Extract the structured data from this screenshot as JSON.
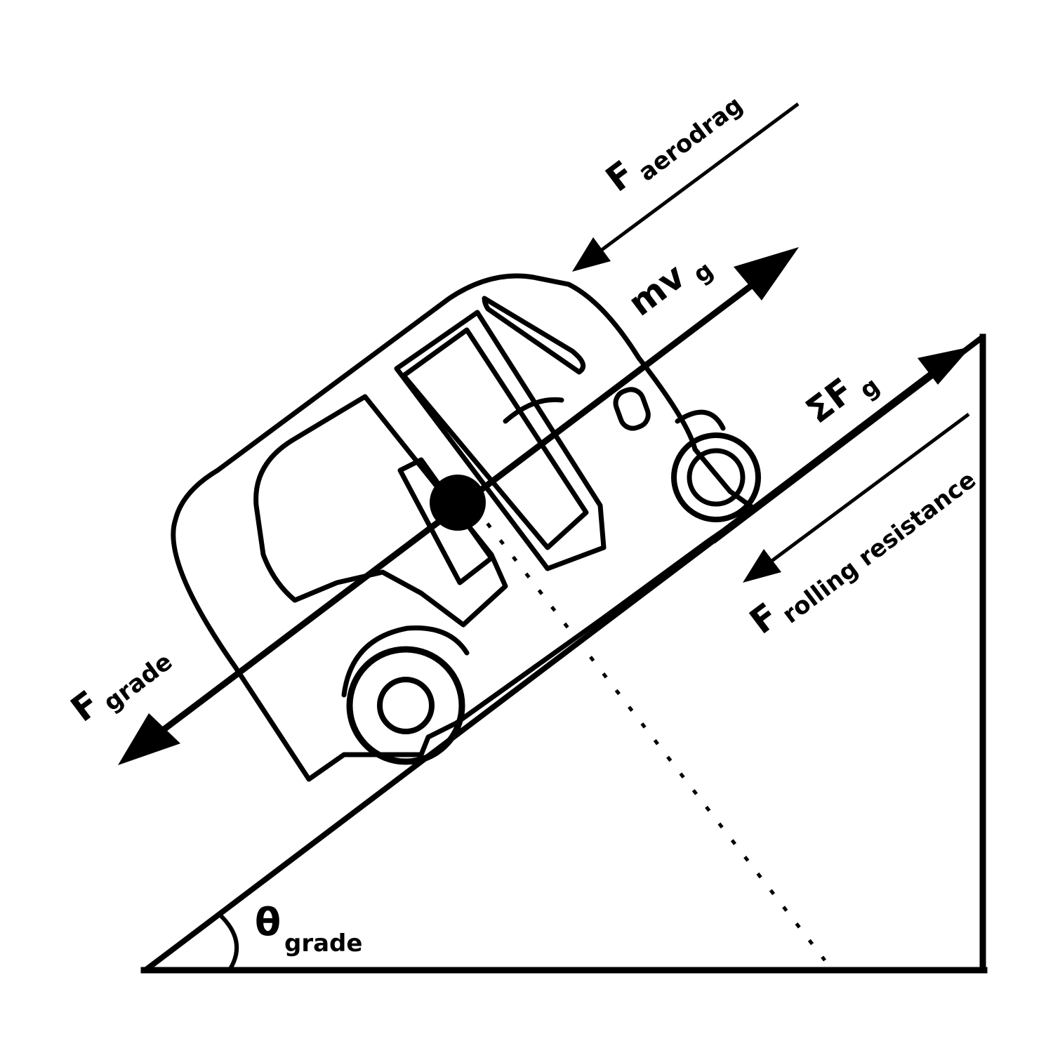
{
  "labels": {
    "f_aerodrag": {
      "main": "F",
      "sub": "aerodrag"
    },
    "mv_g": {
      "main": "mv",
      "sub": "g"
    },
    "sum_f_g": {
      "main": "ΣF",
      "sub": "g"
    },
    "f_rolling": {
      "main": "F",
      "sub": "rolling resistance"
    },
    "f_grade": {
      "main": "F",
      "sub": "grade"
    },
    "theta_grade": {
      "main": "θ",
      "sub": "grade"
    }
  },
  "colors": {
    "ink": "#000000",
    "background": "#ffffff"
  },
  "icons": {
    "vehicle": "auto-rickshaw-icon",
    "center_of_mass": "filled-circle"
  }
}
